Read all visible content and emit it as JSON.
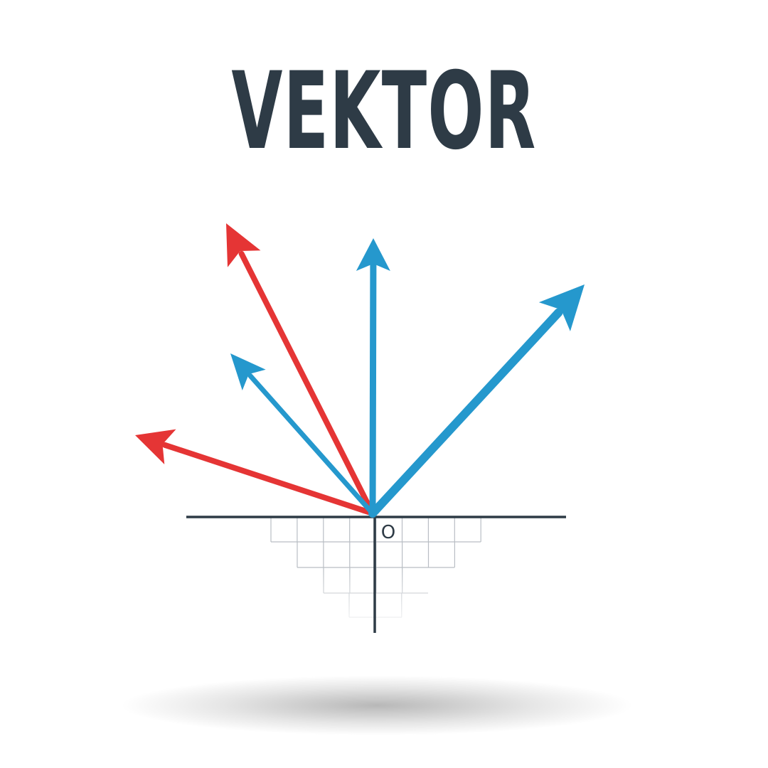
{
  "title": "VEKTOR",
  "origin_label": "O",
  "colors": {
    "text": "#2e3b46",
    "axis": "#2e3b46",
    "grid": "#b9bec4",
    "red": "#e53535",
    "blue": "#2598cd"
  },
  "vectors": [
    {
      "name": "red-vector-long",
      "color": "red"
    },
    {
      "name": "red-vector-low",
      "color": "red"
    },
    {
      "name": "blue-vector-left",
      "color": "blue"
    },
    {
      "name": "blue-vector-up",
      "color": "blue"
    },
    {
      "name": "blue-vector-right",
      "color": "blue"
    }
  ]
}
